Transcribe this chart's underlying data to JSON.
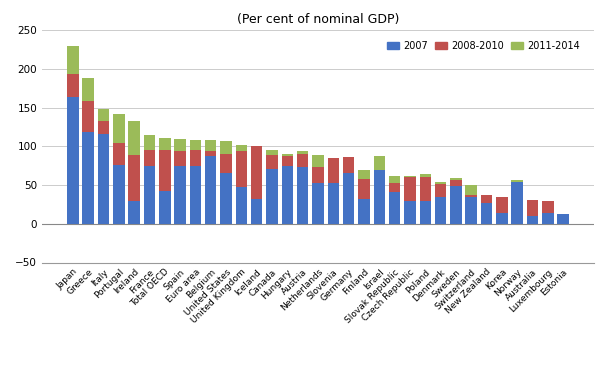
{
  "title": "(Per cent of nominal GDP)",
  "categories": [
    "Japan",
    "Greece",
    "Italy",
    "Portugal",
    "Ireland",
    "France",
    "Total OECD",
    "Spain",
    "Euro area",
    "Belgium",
    "United States",
    "United Kingdom",
    "Iceland",
    "Canada",
    "Hungary",
    "Austria",
    "Netherlands",
    "Slovenia",
    "Germany",
    "Finland",
    "Israel",
    "Slovak Republic",
    "Czech Republic",
    "Poland",
    "Denmark",
    "Sweden",
    "Switzerland",
    "New Zealand",
    "Korea",
    "Norway",
    "Australia",
    "Luxembourg",
    "Estonia"
  ],
  "base_2007": [
    163,
    119,
    116,
    76,
    29,
    75,
    42,
    75,
    75,
    88,
    65,
    47,
    32,
    71,
    75,
    73,
    52,
    52,
    65,
    32,
    76,
    41,
    30,
    30,
    34,
    49,
    35,
    27,
    14,
    57,
    10,
    14,
    12
  ],
  "delta_2008_2010": [
    30,
    39,
    16,
    28,
    60,
    20,
    53,
    19,
    20,
    6,
    25,
    47,
    68,
    18,
    12,
    21,
    21,
    33,
    21,
    26,
    11,
    11,
    32,
    34,
    17,
    8,
    15,
    10,
    20,
    -3,
    21,
    15,
    0
  ],
  "delta_2011_2014": [
    37,
    30,
    16,
    38,
    43,
    20,
    16,
    16,
    13,
    14,
    17,
    7,
    0,
    6,
    3,
    -4,
    16,
    0,
    0,
    11,
    -18,
    9,
    -2,
    -4,
    3,
    2,
    -13,
    0,
    1,
    3,
    0,
    1,
    0
  ],
  "color_2007": "#4472C4",
  "color_2008_2010": "#C0504D",
  "color_2011_2014": "#9BBB59",
  "legend_labels": [
    "2007",
    "2008-2010",
    "2011-2014"
  ],
  "ylim": [
    -50,
    250
  ],
  "yticks": [
    -50,
    0,
    50,
    100,
    150,
    200,
    250
  ],
  "title_fontsize": 9,
  "tick_fontsize": 6.5,
  "ytick_fontsize": 7.5,
  "bar_width": 0.75
}
